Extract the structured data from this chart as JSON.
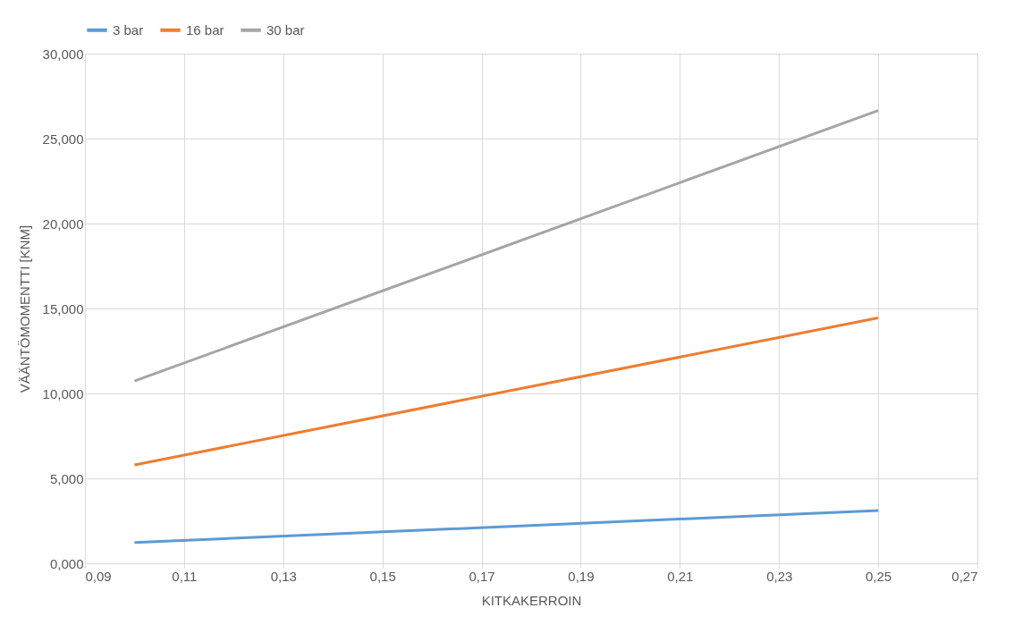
{
  "chart_data": {
    "type": "line",
    "xlabel": "KITKAKERROIN",
    "ylabel": "VÄÄNTÖMOMENTTI [KNM]",
    "x": [
      0.1,
      0.25
    ],
    "series": [
      {
        "name": "3 bar",
        "color": "#5b9bd5",
        "values": [
          1.22,
          3.11
        ]
      },
      {
        "name": "16 bar",
        "color": "#ed7d31",
        "values": [
          5.79,
          14.45
        ]
      },
      {
        "name": "30 bar",
        "color": "#a5a5a5",
        "values": [
          10.73,
          26.65
        ]
      }
    ],
    "xlim": [
      0.09,
      0.27
    ],
    "xticks": [
      {
        "value": 0.09,
        "label": "0,09"
      },
      {
        "value": 0.11,
        "label": "0,11"
      },
      {
        "value": 0.13,
        "label": "0,13"
      },
      {
        "value": 0.15,
        "label": "0,15"
      },
      {
        "value": 0.17,
        "label": "0,17"
      },
      {
        "value": 0.19,
        "label": "0,19"
      },
      {
        "value": 0.21,
        "label": "0,21"
      },
      {
        "value": 0.23,
        "label": "0,23"
      },
      {
        "value": 0.25,
        "label": "0,25"
      },
      {
        "value": 0.27,
        "label": "0,27"
      }
    ],
    "ylim": [
      0,
      30
    ],
    "yticks": [
      {
        "value": 0,
        "label": "0,000"
      },
      {
        "value": 5,
        "label": "5,000"
      },
      {
        "value": 10,
        "label": "10,000"
      },
      {
        "value": 15,
        "label": "15,000"
      },
      {
        "value": 20,
        "label": "20,000"
      },
      {
        "value": 25,
        "label": "25,000"
      },
      {
        "value": 30,
        "label": "30,000"
      }
    ],
    "grid": true,
    "legend": "top",
    "marker": "none",
    "line_style": "solid"
  }
}
